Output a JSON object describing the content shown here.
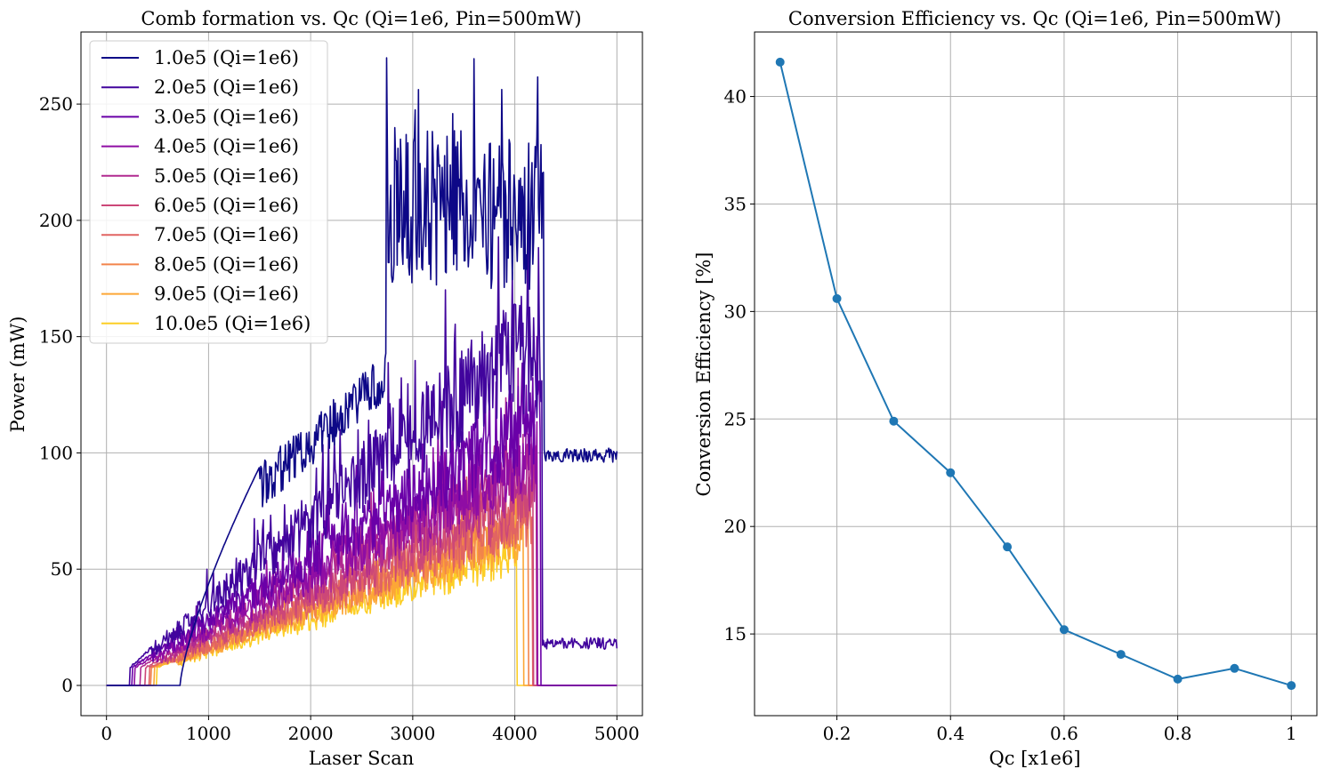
{
  "chart_data": [
    {
      "type": "line",
      "title": "Comb formation vs. Qc (Qi=1e6, Pin=500mW)",
      "xlabel": "Laser Scan",
      "ylabel": "Power (mW)",
      "xlim": [
        -250,
        5250
      ],
      "ylim": [
        -13,
        281
      ],
      "xticks": [
        0,
        1000,
        2000,
        3000,
        4000,
        5000
      ],
      "yticks": [
        0,
        50,
        100,
        150,
        200,
        250
      ],
      "grid": true,
      "legend": "upper left",
      "series": [
        {
          "name": "1.0e5 (Qi=1e6)",
          "color": "#0d0887",
          "qc": 1.0,
          "onset": 720,
          "peak_x": 3550,
          "peak": 268,
          "drop": 4280,
          "tail": 99
        },
        {
          "name": "2.0e5 (Qi=1e6)",
          "color": "#41049d",
          "qc": 2.0,
          "onset": 230,
          "peak_x": 3900,
          "peak": 200,
          "drop": 4270,
          "tail": 18
        },
        {
          "name": "3.0e5 (Qi=1e6)",
          "color": "#6a00a8",
          "qc": 3.0,
          "onset": 250,
          "peak_x": 4150,
          "peak": 160,
          "drop": 4250,
          "tail": 0
        },
        {
          "name": "4.0e5 (Qi=1e6)",
          "color": "#8f0da4",
          "qc": 4.0,
          "onset": 280,
          "peak_x": 4200,
          "peak": 140,
          "drop": 4220,
          "tail": 0
        },
        {
          "name": "5.0e5 (Qi=1e6)",
          "color": "#b12a90",
          "qc": 5.0,
          "onset": 330,
          "peak_x": 4180,
          "peak": 128,
          "drop": 4210,
          "tail": 0
        },
        {
          "name": "6.0e5 (Qi=1e6)",
          "color": "#cc4778",
          "qc": 6.0,
          "onset": 380,
          "peak_x": 4150,
          "peak": 110,
          "drop": 4180,
          "tail": 0
        },
        {
          "name": "7.0e5 (Qi=1e6)",
          "color": "#e16462",
          "qc": 7.0,
          "onset": 420,
          "peak_x": 4150,
          "peak": 100,
          "drop": 4170,
          "tail": 0
        },
        {
          "name": "8.0e5 (Qi=1e6)",
          "color": "#f2844b",
          "qc": 8.0,
          "onset": 440,
          "peak_x": 4100,
          "peak": 95,
          "drop": 4130,
          "tail": 0
        },
        {
          "name": "9.0e5 (Qi=1e6)",
          "color": "#fca636",
          "qc": 9.0,
          "onset": 470,
          "peak_x": 4050,
          "peak": 85,
          "drop": 4080,
          "tail": 0
        },
        {
          "name": "10.0e5 (Qi=1e6)",
          "color": "#fcce25",
          "qc": 10.0,
          "onset": 490,
          "peak_x": 3980,
          "peak": 75,
          "drop": 4020,
          "tail": 0
        }
      ]
    },
    {
      "type": "line",
      "title": "Conversion Efficiency vs. Qc (Qi=1e6, Pin=500mW)",
      "xlabel": "Qc [x1e6]",
      "ylabel": "Conversion Efficiency [%]",
      "xlim": [
        0.055,
        1.045
      ],
      "ylim": [
        11.2,
        43.0
      ],
      "xticks": [
        0.2,
        0.4,
        0.6,
        0.8,
        1.0
      ],
      "yticks": [
        15,
        20,
        25,
        30,
        35,
        40
      ],
      "grid": true,
      "marker": "circle",
      "color": "#1f77b4",
      "x": [
        0.1,
        0.2,
        0.3,
        0.4,
        0.5,
        0.6,
        0.7,
        0.8,
        0.9,
        1.0
      ],
      "y": [
        41.6,
        30.6,
        24.9,
        22.5,
        19.05,
        15.2,
        14.05,
        12.9,
        13.4,
        12.6
      ]
    }
  ]
}
